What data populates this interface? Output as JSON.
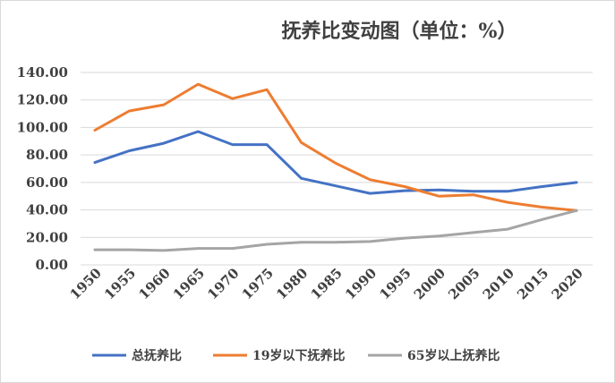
{
  "chart_data": {
    "type": "line",
    "title": "抚养比变动图（单位：%）",
    "xlabel": "",
    "ylabel": "",
    "x": [
      1950,
      1955,
      1960,
      1965,
      1970,
      1975,
      1980,
      1985,
      1990,
      1995,
      2000,
      2005,
      2010,
      2015,
      2020
    ],
    "x_tick_labels": [
      "1950",
      "1955",
      "1960",
      "1965",
      "1970",
      "1975",
      "1980",
      "1985",
      "1990",
      "1995",
      "2000",
      "2005",
      "2010",
      "2015",
      "2020"
    ],
    "ylim": [
      0,
      140
    ],
    "y_ticks": [
      0,
      20,
      40,
      60,
      80,
      100,
      120,
      140
    ],
    "y_tick_labels": [
      "0.00",
      "20.00",
      "40.00",
      "60.00",
      "80.00",
      "100.00",
      "120.00",
      "140.00"
    ],
    "grid": true,
    "legend_position": "bottom",
    "series": [
      {
        "name": "总抚养比",
        "color": "#4472C4",
        "values": [
          74.5,
          83,
          88.5,
          97,
          87.5,
          87.5,
          63,
          57.5,
          52,
          54,
          54.5,
          53.5,
          53.5,
          57,
          60
        ]
      },
      {
        "name": "19岁以下抚养比",
        "color": "#ED7D31",
        "values": [
          98,
          112,
          116.5,
          131.5,
          121,
          127.5,
          89,
          74,
          62,
          57,
          50,
          51,
          45.5,
          42,
          39.5
        ]
      },
      {
        "name": "65岁以上抚养比",
        "color": "#A5A5A5",
        "values": [
          11,
          11,
          10.5,
          12,
          12,
          15,
          16.5,
          16.5,
          17,
          19.5,
          21,
          23.5,
          26,
          33,
          39.5
        ]
      }
    ]
  }
}
